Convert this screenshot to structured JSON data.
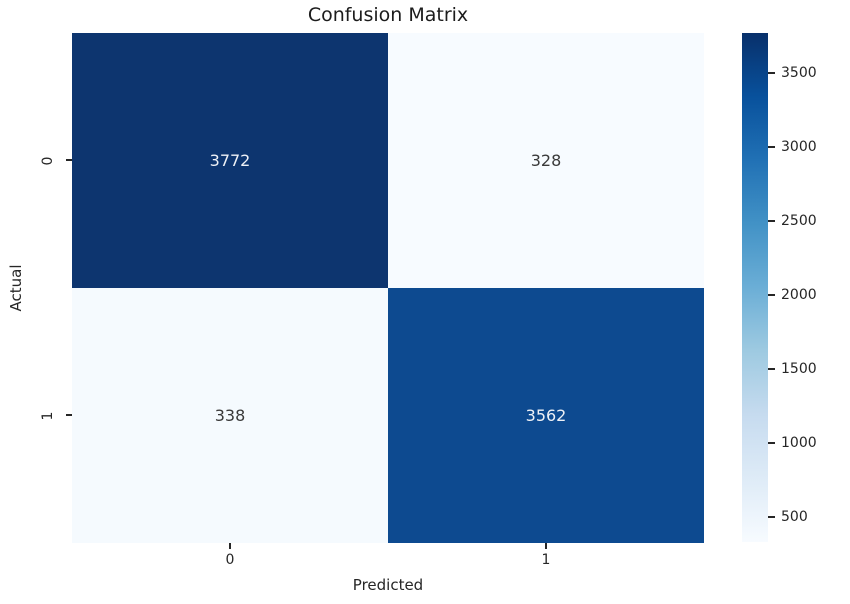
{
  "title": "Confusion Matrix",
  "chart_data": {
    "type": "heatmap",
    "title": "Confusion Matrix",
    "xlabel": "Predicted",
    "ylabel": "Actual",
    "x_tick_labels": [
      "0",
      "1"
    ],
    "y_tick_labels": [
      "0",
      "1"
    ],
    "matrix": [
      [
        3772,
        328
      ],
      [
        338,
        3562
      ]
    ],
    "colormap": "Blues",
    "vmin": 328,
    "vmax": 3772,
    "colorbar_ticks": [
      500,
      1000,
      1500,
      2000,
      2500,
      3000,
      3500
    ],
    "legend_position": "right-colorbar",
    "grid": false,
    "cell_colors": [
      [
        "#0d356f",
        "#f7fbff"
      ],
      [
        "#f5fafe",
        "#0d4a90"
      ]
    ],
    "cell_text_colors": [
      [
        "#eef1f6",
        "#3a3a3a"
      ],
      [
        "#3a3a3a",
        "#eef1f6"
      ]
    ]
  },
  "colors": {
    "background": "#ffffff",
    "text": "#262626",
    "tick": "#262626",
    "colorbar_gradient": [
      "#f7fbff 0%",
      "#deebf7 12.5%",
      "#c6dbef 25%",
      "#9ecae1 37.5%",
      "#6baed6 50%",
      "#4292c6 62.5%",
      "#2171b5 75%",
      "#08519c 87.5%",
      "#08306b 100%"
    ]
  }
}
